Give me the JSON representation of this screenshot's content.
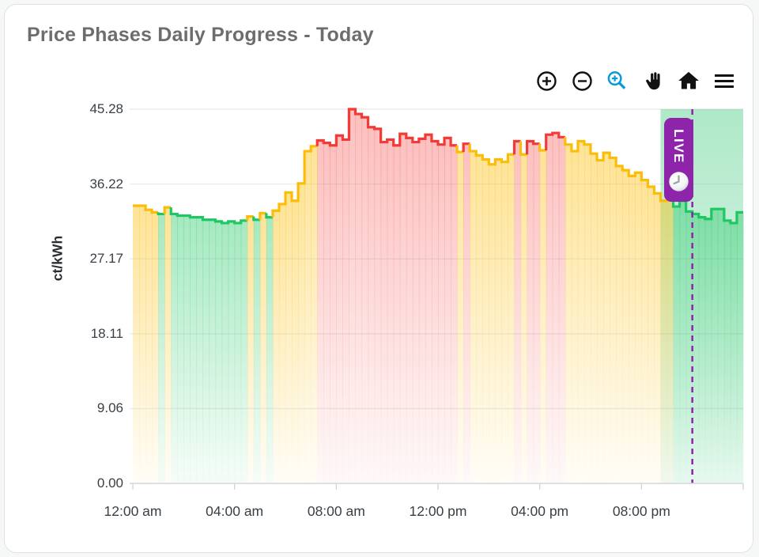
{
  "card": {
    "title": "Price Phases Daily Progress - Today"
  },
  "toolbar": {
    "icon_color": "#111111",
    "active_color": "#0b9bd7",
    "icons": [
      {
        "name": "zoom-in-icon"
      },
      {
        "name": "zoom-out-icon"
      },
      {
        "name": "selection-zoom-icon",
        "active": true
      },
      {
        "name": "pan-hand-icon"
      },
      {
        "name": "home-reset-icon"
      },
      {
        "name": "menu-icon"
      }
    ]
  },
  "chart_data": {
    "type": "area",
    "subtype": "stepline-phases",
    "title": "Price Phases Daily Progress - Today",
    "xlabel": "",
    "ylabel": "ct/kWh",
    "ylim": [
      0,
      45.28
    ],
    "yticks": [
      "45.28",
      "36.22",
      "27.17",
      "18.11",
      "9.06",
      "0.00"
    ],
    "xticks": [
      "12:00 am",
      "04:00 am",
      "08:00 am",
      "12:00 pm",
      "04:00 pm",
      "08:00 pm"
    ],
    "x_start_hour": 0,
    "x_end_hour": 24,
    "interval_minutes": 15,
    "grid": "horizontal",
    "legend": "none",
    "phase_colors": {
      "G": "#1fc763",
      "Y": "#fbbd08",
      "R": "#f23b37"
    },
    "values": [
      33.6,
      33.6,
      33.1,
      32.8,
      32.6,
      33.4,
      32.6,
      32.4,
      32.4,
      32.2,
      32.2,
      31.9,
      31.9,
      31.7,
      31.5,
      31.7,
      31.5,
      31.8,
      32.3,
      31.9,
      32.7,
      32.2,
      33.0,
      33.8,
      35.2,
      34.2,
      36.3,
      40.2,
      40.8,
      41.5,
      41.2,
      40.9,
      42.1,
      41.6,
      45.28,
      44.7,
      44.3,
      43.1,
      42.9,
      41.3,
      41.6,
      40.9,
      42.3,
      41.8,
      41.3,
      41.7,
      42.2,
      41.4,
      41.0,
      41.8,
      40.9,
      40.1,
      41.1,
      40.2,
      39.7,
      39.2,
      38.6,
      39.2,
      38.9,
      39.8,
      41.4,
      39.8,
      41.4,
      41.1,
      40.3,
      42.2,
      42.4,
      41.9,
      41.0,
      40.2,
      41.4,
      41.0,
      39.9,
      39.1,
      40.0,
      39.4,
      38.4,
      37.9,
      37.2,
      37.6,
      36.7,
      35.9,
      35.1,
      34.2,
      34.5,
      33.5,
      34.2,
      32.9,
      32.6,
      32.2,
      32.0,
      33.2,
      33.2,
      31.8,
      31.5,
      32.8
    ],
    "phases": "YYYYGYGGGGGGGGGGGGYGYGYYYYYYYRRRRRRRRRRRRRRRRRRRRRRYRYYYYYYYRYRRYRRRYYYYYYYYYYYYYYYYYGGGGGGGGGGG",
    "annotations": {
      "band": {
        "start_hour": 20.75,
        "end_hour": 24,
        "color": "#2bc46f"
      },
      "now_line": {
        "hour": 22,
        "color": "#8e24aa",
        "style": "dashed"
      },
      "badge": {
        "label": "LIVE",
        "bg": "#8e24aa",
        "text_color": "#ffffff",
        "icon": "clock-icon"
      }
    }
  }
}
